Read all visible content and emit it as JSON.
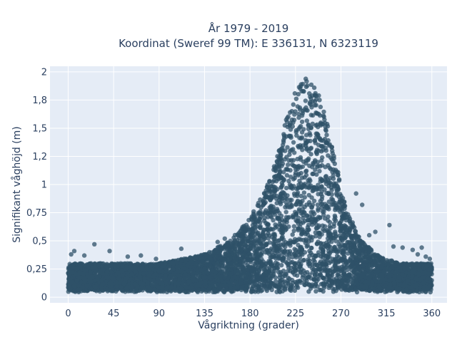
{
  "chart_data": {
    "type": "scatter",
    "title_line1": "År 1979 - 2019",
    "title_line2": "Koordinat (Sweref 99 TM): E 336131, N 6323119",
    "xlabel": "Vågriktning (grader)",
    "ylabel": "Signifikant våghöjd (m)",
    "xlim": [
      -18,
      375
    ],
    "ylim": [
      -0.05,
      2.05
    ],
    "xticks": [
      0,
      45,
      90,
      135,
      180,
      225,
      270,
      315,
      360
    ],
    "xtick_labels": [
      "0",
      "45",
      "90",
      "135",
      "180",
      "225",
      "270",
      "315",
      "360"
    ],
    "yticks": [
      0,
      0.25,
      0.5,
      0.75,
      1,
      1.25,
      1.5,
      1.75,
      2
    ],
    "ytick_labels": [
      "0",
      "0,25",
      "0,5",
      "0,75",
      "1",
      "1,2",
      "1,5",
      "1,8",
      "2"
    ],
    "grid": true,
    "plot_background": "#e5ecf6",
    "marker_color": "#2f5268",
    "envelope": [
      {
        "x": 0,
        "y": 0.3
      },
      {
        "x": 45,
        "y": 0.3
      },
      {
        "x": 90,
        "y": 0.3
      },
      {
        "x": 135,
        "y": 0.38
      },
      {
        "x": 160,
        "y": 0.5
      },
      {
        "x": 180,
        "y": 0.7
      },
      {
        "x": 200,
        "y": 1.05
      },
      {
        "x": 215,
        "y": 1.55
      },
      {
        "x": 225,
        "y": 1.85
      },
      {
        "x": 235,
        "y": 1.95
      },
      {
        "x": 245,
        "y": 1.9
      },
      {
        "x": 255,
        "y": 1.6
      },
      {
        "x": 265,
        "y": 1.2
      },
      {
        "x": 275,
        "y": 0.8
      },
      {
        "x": 290,
        "y": 0.5
      },
      {
        "x": 310,
        "y": 0.35
      },
      {
        "x": 330,
        "y": 0.3
      },
      {
        "x": 360,
        "y": 0.3
      }
    ],
    "outliers": [
      {
        "x": 3,
        "y": 0.38
      },
      {
        "x": 6,
        "y": 0.41
      },
      {
        "x": 16,
        "y": 0.37
      },
      {
        "x": 26,
        "y": 0.47
      },
      {
        "x": 41,
        "y": 0.41
      },
      {
        "x": 59,
        "y": 0.36
      },
      {
        "x": 72,
        "y": 0.37
      },
      {
        "x": 87,
        "y": 0.34
      },
      {
        "x": 112,
        "y": 0.43
      },
      {
        "x": 136,
        "y": 0.38
      },
      {
        "x": 148,
        "y": 0.49
      },
      {
        "x": 155,
        "y": 0.52
      },
      {
        "x": 285,
        "y": 0.92
      },
      {
        "x": 291,
        "y": 0.82
      },
      {
        "x": 298,
        "y": 0.55
      },
      {
        "x": 304,
        "y": 0.58
      },
      {
        "x": 318,
        "y": 0.64
      },
      {
        "x": 322,
        "y": 0.45
      },
      {
        "x": 331,
        "y": 0.44
      },
      {
        "x": 341,
        "y": 0.42
      },
      {
        "x": 346,
        "y": 0.38
      },
      {
        "x": 350,
        "y": 0.44
      },
      {
        "x": 354,
        "y": 0.36
      },
      {
        "x": 358,
        "y": 0.34
      }
    ]
  }
}
